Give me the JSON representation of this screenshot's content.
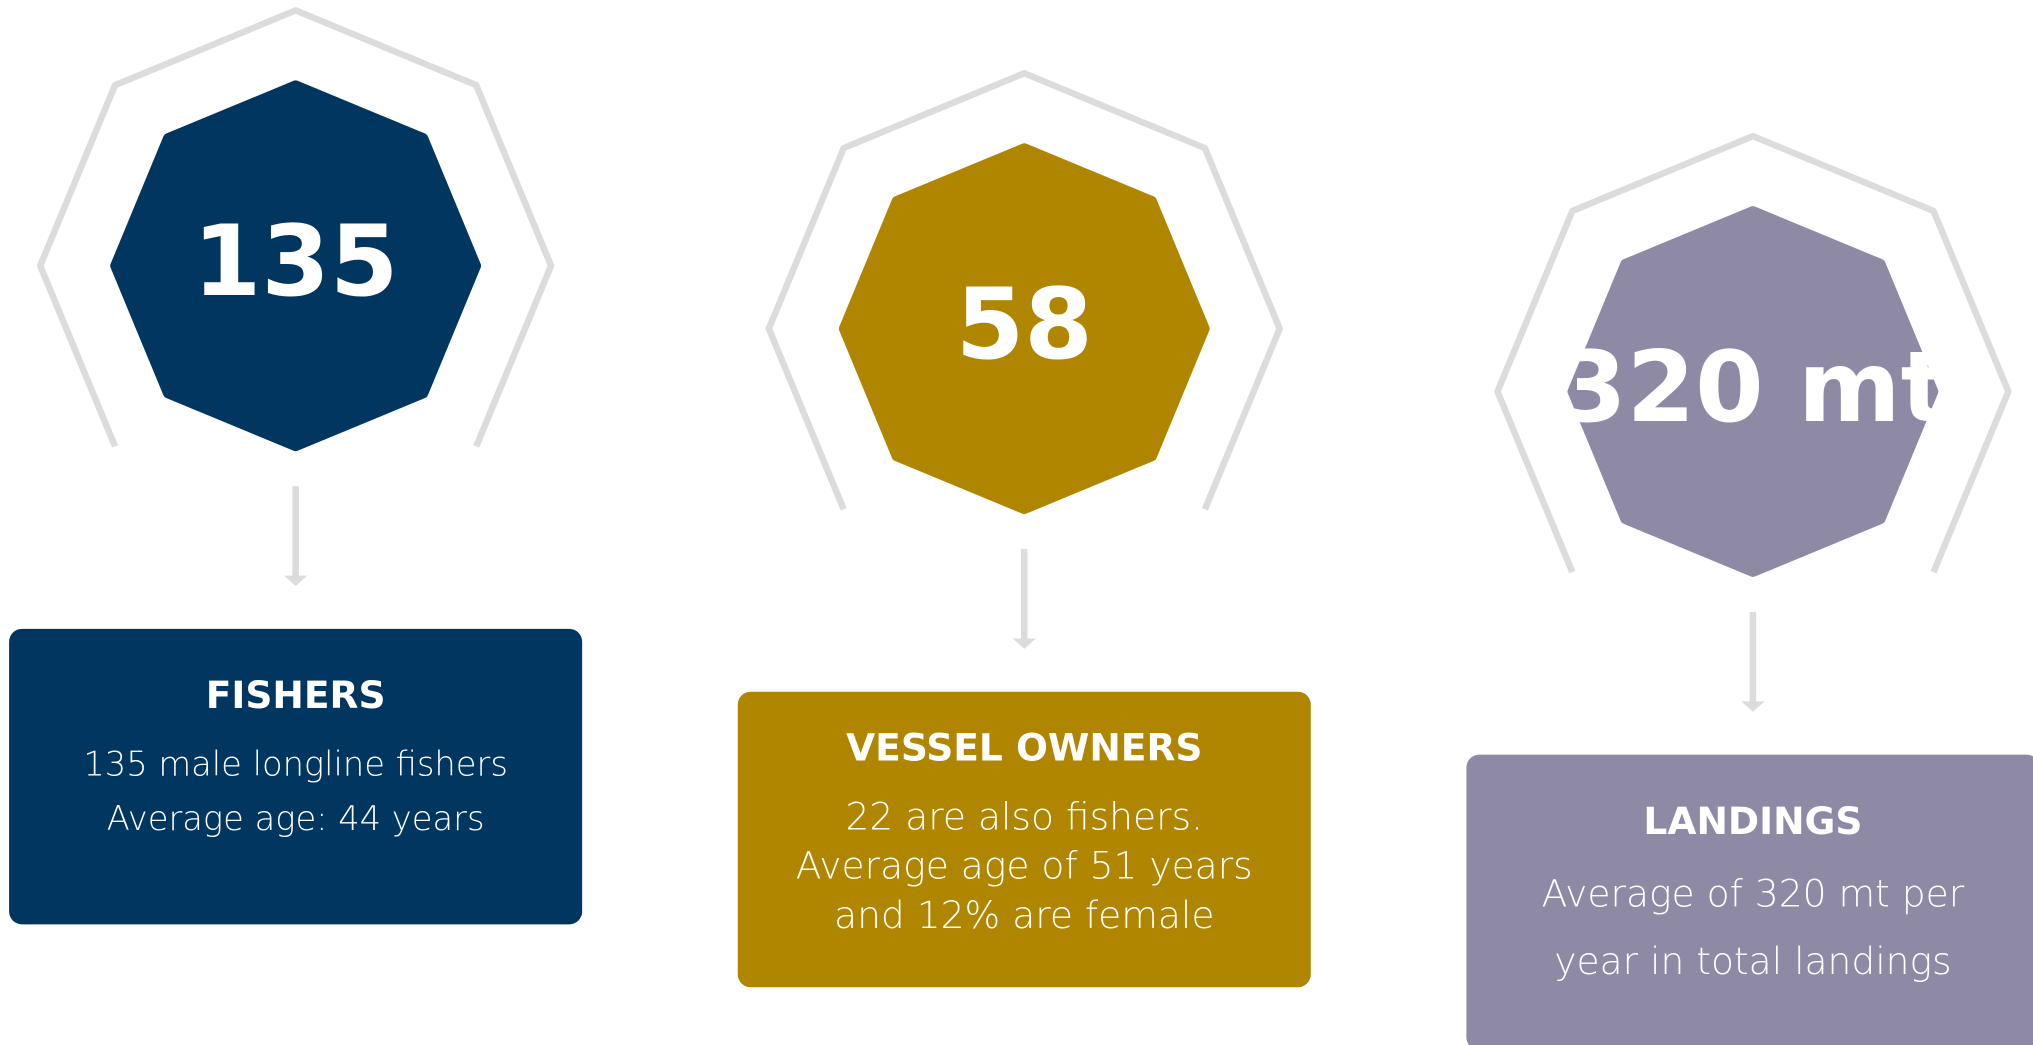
{
  "items": [
    {
      "value": "135",
      "title": "FISHERS",
      "lines": [
        "135 male longline fishers",
        "Average age: 44 years"
      ],
      "color": "#003660"
    },
    {
      "value": "58",
      "title": "VESSEL OWNERS",
      "lines": [
        "22 are also fishers.",
        "Average age of 51 years",
        "and 12% are female"
      ],
      "color": "#b08600"
    },
    {
      "value": "320 mt",
      "title": "LANDINGS",
      "lines": [
        "Average of 320 mt per",
        "year in total landings"
      ],
      "color": "#8e8aa6"
    }
  ]
}
